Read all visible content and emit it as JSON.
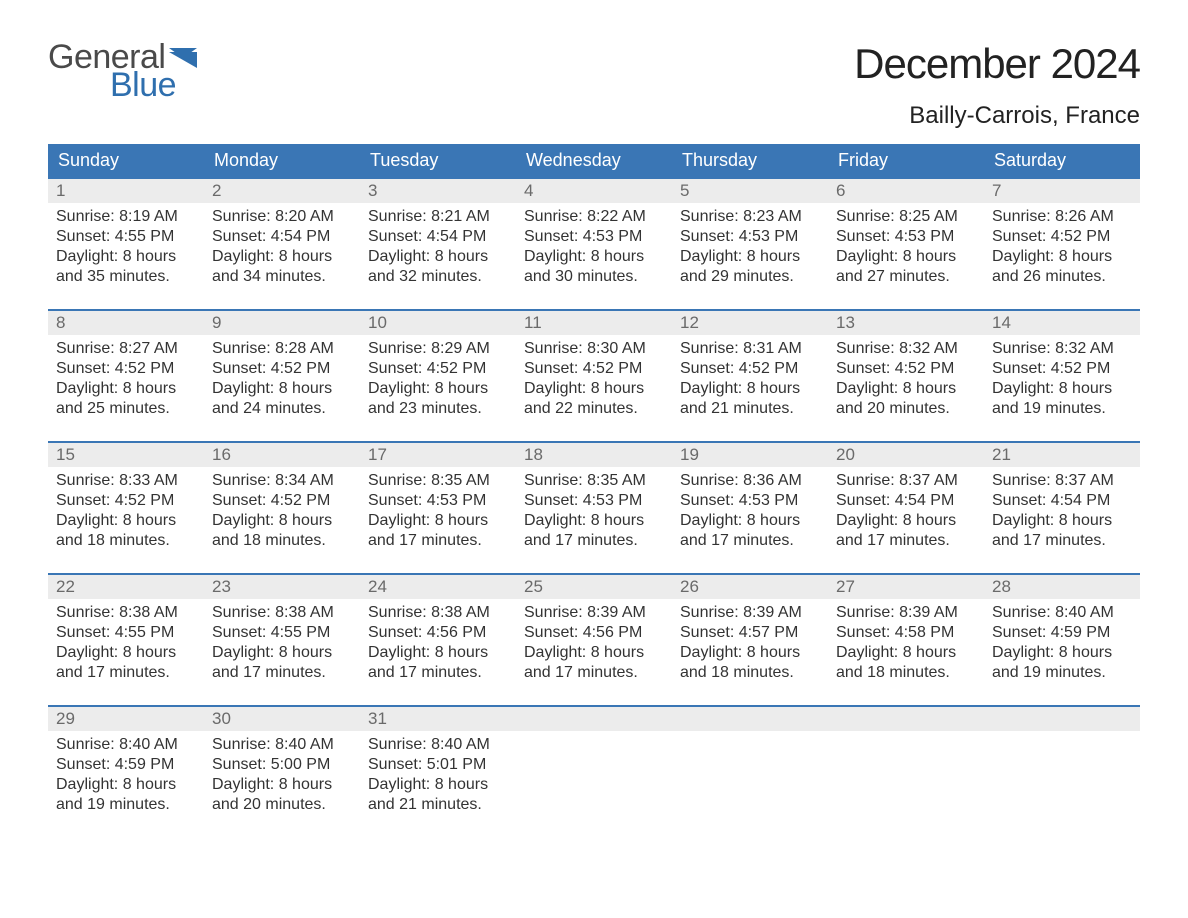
{
  "brand": {
    "word1": "General",
    "word2": "Blue",
    "flag_color": "#2f6fae"
  },
  "title": "December 2024",
  "location": "Bailly-Carrois, France",
  "colors": {
    "header_bg": "#3a76b5",
    "header_text": "#ffffff",
    "row_border": "#3a76b5",
    "daynum_bg": "#ececec",
    "daynum_text": "#6a6a6a",
    "body_text": "#333333",
    "page_bg": "#ffffff"
  },
  "typography": {
    "title_fontsize": 42,
    "location_fontsize": 24,
    "header_fontsize": 18,
    "daynum_fontsize": 17,
    "body_fontsize": 16,
    "font_family": "Arial"
  },
  "layout": {
    "columns": 7,
    "rows": 5,
    "cell_width_ratio": 0.1428
  },
  "weekdays": [
    "Sunday",
    "Monday",
    "Tuesday",
    "Wednesday",
    "Thursday",
    "Friday",
    "Saturday"
  ],
  "weeks": [
    [
      {
        "n": "1",
        "sunrise": "Sunrise: 8:19 AM",
        "sunset": "Sunset: 4:55 PM",
        "daylight": "Daylight: 8 hours and 35 minutes."
      },
      {
        "n": "2",
        "sunrise": "Sunrise: 8:20 AM",
        "sunset": "Sunset: 4:54 PM",
        "daylight": "Daylight: 8 hours and 34 minutes."
      },
      {
        "n": "3",
        "sunrise": "Sunrise: 8:21 AM",
        "sunset": "Sunset: 4:54 PM",
        "daylight": "Daylight: 8 hours and 32 minutes."
      },
      {
        "n": "4",
        "sunrise": "Sunrise: 8:22 AM",
        "sunset": "Sunset: 4:53 PM",
        "daylight": "Daylight: 8 hours and 30 minutes."
      },
      {
        "n": "5",
        "sunrise": "Sunrise: 8:23 AM",
        "sunset": "Sunset: 4:53 PM",
        "daylight": "Daylight: 8 hours and 29 minutes."
      },
      {
        "n": "6",
        "sunrise": "Sunrise: 8:25 AM",
        "sunset": "Sunset: 4:53 PM",
        "daylight": "Daylight: 8 hours and 27 minutes."
      },
      {
        "n": "7",
        "sunrise": "Sunrise: 8:26 AM",
        "sunset": "Sunset: 4:52 PM",
        "daylight": "Daylight: 8 hours and 26 minutes."
      }
    ],
    [
      {
        "n": "8",
        "sunrise": "Sunrise: 8:27 AM",
        "sunset": "Sunset: 4:52 PM",
        "daylight": "Daylight: 8 hours and 25 minutes."
      },
      {
        "n": "9",
        "sunrise": "Sunrise: 8:28 AM",
        "sunset": "Sunset: 4:52 PM",
        "daylight": "Daylight: 8 hours and 24 minutes."
      },
      {
        "n": "10",
        "sunrise": "Sunrise: 8:29 AM",
        "sunset": "Sunset: 4:52 PM",
        "daylight": "Daylight: 8 hours and 23 minutes."
      },
      {
        "n": "11",
        "sunrise": "Sunrise: 8:30 AM",
        "sunset": "Sunset: 4:52 PM",
        "daylight": "Daylight: 8 hours and 22 minutes."
      },
      {
        "n": "12",
        "sunrise": "Sunrise: 8:31 AM",
        "sunset": "Sunset: 4:52 PM",
        "daylight": "Daylight: 8 hours and 21 minutes."
      },
      {
        "n": "13",
        "sunrise": "Sunrise: 8:32 AM",
        "sunset": "Sunset: 4:52 PM",
        "daylight": "Daylight: 8 hours and 20 minutes."
      },
      {
        "n": "14",
        "sunrise": "Sunrise: 8:32 AM",
        "sunset": "Sunset: 4:52 PM",
        "daylight": "Daylight: 8 hours and 19 minutes."
      }
    ],
    [
      {
        "n": "15",
        "sunrise": "Sunrise: 8:33 AM",
        "sunset": "Sunset: 4:52 PM",
        "daylight": "Daylight: 8 hours and 18 minutes."
      },
      {
        "n": "16",
        "sunrise": "Sunrise: 8:34 AM",
        "sunset": "Sunset: 4:52 PM",
        "daylight": "Daylight: 8 hours and 18 minutes."
      },
      {
        "n": "17",
        "sunrise": "Sunrise: 8:35 AM",
        "sunset": "Sunset: 4:53 PM",
        "daylight": "Daylight: 8 hours and 17 minutes."
      },
      {
        "n": "18",
        "sunrise": "Sunrise: 8:35 AM",
        "sunset": "Sunset: 4:53 PM",
        "daylight": "Daylight: 8 hours and 17 minutes."
      },
      {
        "n": "19",
        "sunrise": "Sunrise: 8:36 AM",
        "sunset": "Sunset: 4:53 PM",
        "daylight": "Daylight: 8 hours and 17 minutes."
      },
      {
        "n": "20",
        "sunrise": "Sunrise: 8:37 AM",
        "sunset": "Sunset: 4:54 PM",
        "daylight": "Daylight: 8 hours and 17 minutes."
      },
      {
        "n": "21",
        "sunrise": "Sunrise: 8:37 AM",
        "sunset": "Sunset: 4:54 PM",
        "daylight": "Daylight: 8 hours and 17 minutes."
      }
    ],
    [
      {
        "n": "22",
        "sunrise": "Sunrise: 8:38 AM",
        "sunset": "Sunset: 4:55 PM",
        "daylight": "Daylight: 8 hours and 17 minutes."
      },
      {
        "n": "23",
        "sunrise": "Sunrise: 8:38 AM",
        "sunset": "Sunset: 4:55 PM",
        "daylight": "Daylight: 8 hours and 17 minutes."
      },
      {
        "n": "24",
        "sunrise": "Sunrise: 8:38 AM",
        "sunset": "Sunset: 4:56 PM",
        "daylight": "Daylight: 8 hours and 17 minutes."
      },
      {
        "n": "25",
        "sunrise": "Sunrise: 8:39 AM",
        "sunset": "Sunset: 4:56 PM",
        "daylight": "Daylight: 8 hours and 17 minutes."
      },
      {
        "n": "26",
        "sunrise": "Sunrise: 8:39 AM",
        "sunset": "Sunset: 4:57 PM",
        "daylight": "Daylight: 8 hours and 18 minutes."
      },
      {
        "n": "27",
        "sunrise": "Sunrise: 8:39 AM",
        "sunset": "Sunset: 4:58 PM",
        "daylight": "Daylight: 8 hours and 18 minutes."
      },
      {
        "n": "28",
        "sunrise": "Sunrise: 8:40 AM",
        "sunset": "Sunset: 4:59 PM",
        "daylight": "Daylight: 8 hours and 19 minutes."
      }
    ],
    [
      {
        "n": "29",
        "sunrise": "Sunrise: 8:40 AM",
        "sunset": "Sunset: 4:59 PM",
        "daylight": "Daylight: 8 hours and 19 minutes."
      },
      {
        "n": "30",
        "sunrise": "Sunrise: 8:40 AM",
        "sunset": "Sunset: 5:00 PM",
        "daylight": "Daylight: 8 hours and 20 minutes."
      },
      {
        "n": "31",
        "sunrise": "Sunrise: 8:40 AM",
        "sunset": "Sunset: 5:01 PM",
        "daylight": "Daylight: 8 hours and 21 minutes."
      },
      null,
      null,
      null,
      null
    ]
  ]
}
